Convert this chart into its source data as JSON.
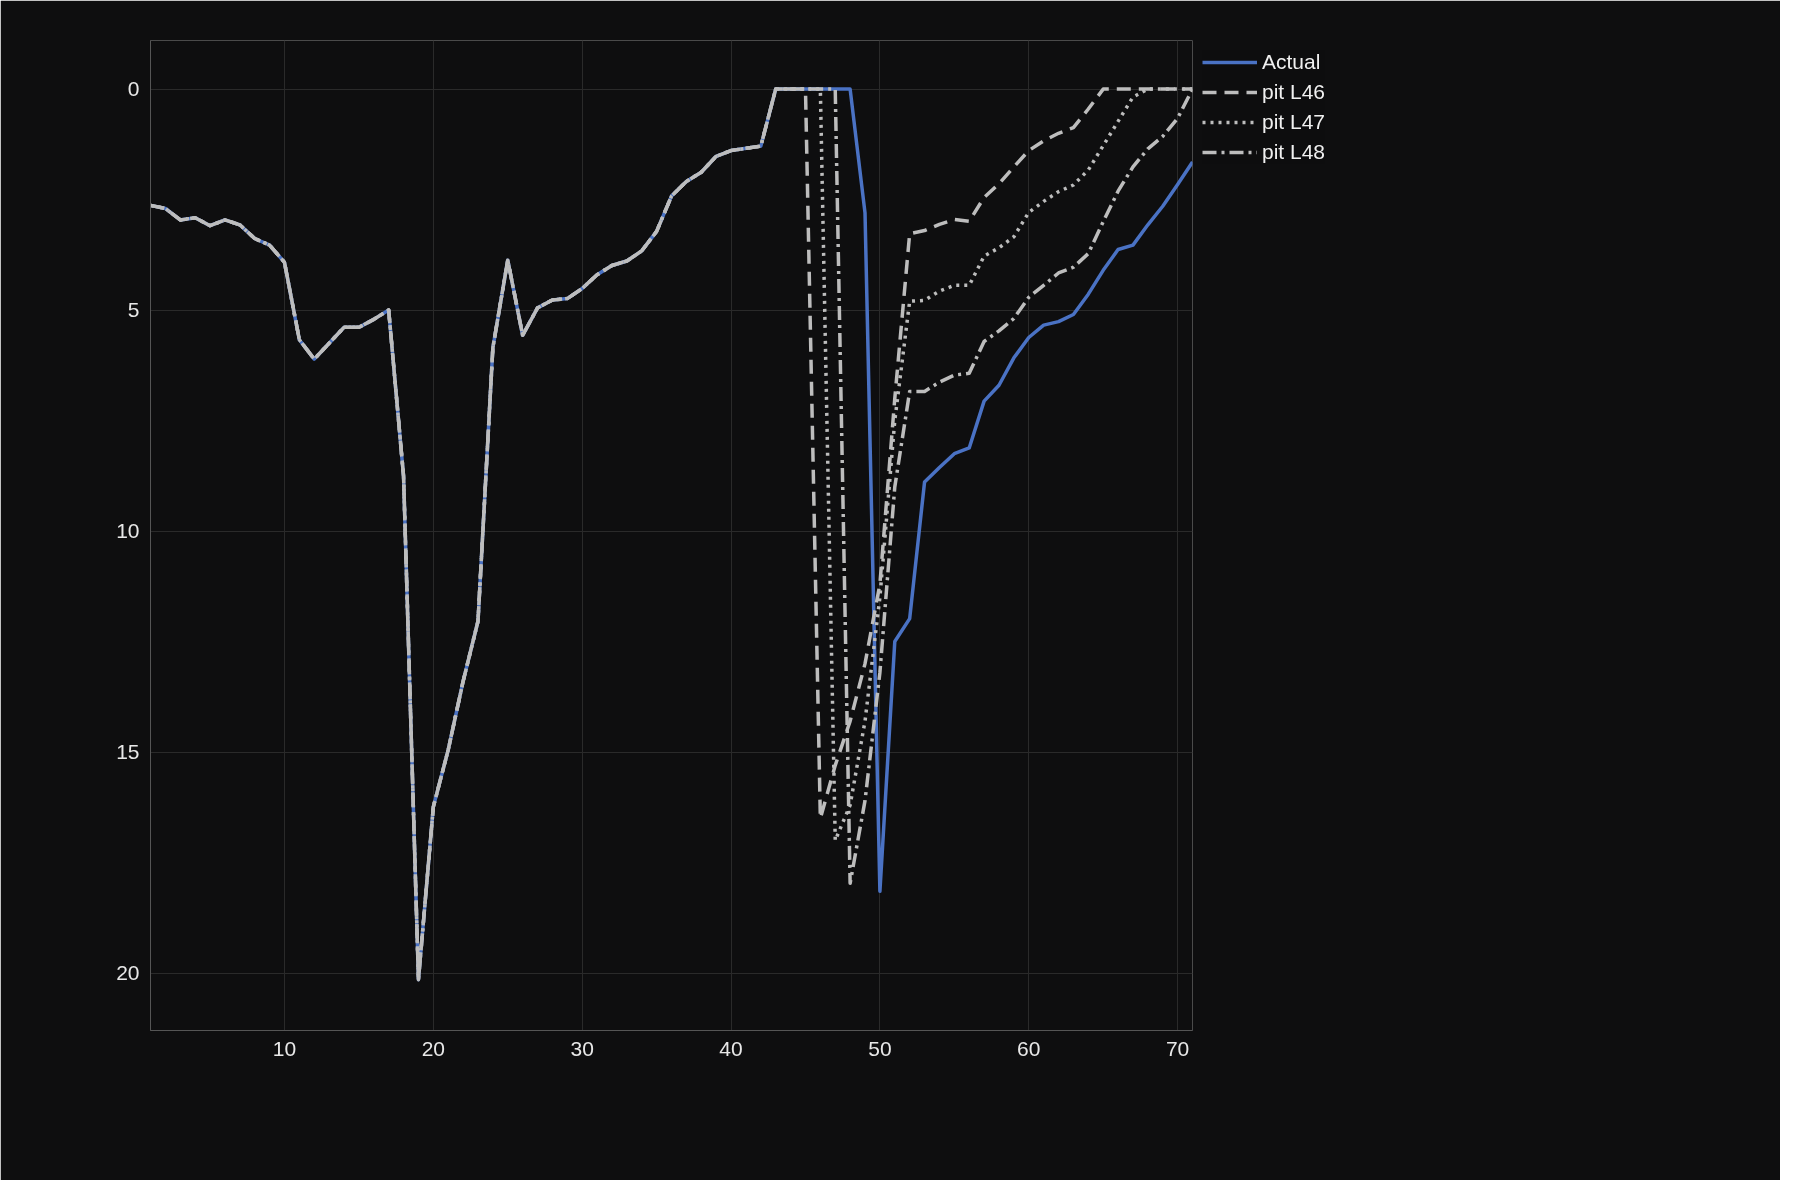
{
  "chart_data": {
    "type": "line",
    "x": [
      1,
      2,
      3,
      4,
      5,
      6,
      7,
      8,
      9,
      10,
      11,
      12,
      13,
      14,
      15,
      16,
      17,
      18,
      19,
      20,
      21,
      22,
      23,
      24,
      25,
      26,
      27,
      28,
      29,
      30,
      31,
      32,
      33,
      34,
      35,
      36,
      37,
      38,
      39,
      40,
      41,
      42,
      43,
      44,
      45,
      46,
      47,
      48,
      49,
      50,
      51,
      52,
      53,
      54,
      55,
      56,
      57,
      58,
      59,
      60,
      61,
      62,
      63,
      64,
      65,
      66,
      67,
      68,
      69,
      70,
      71
    ],
    "xlim": [
      1,
      71
    ],
    "xticks": [
      10,
      20,
      30,
      40,
      50,
      60,
      70
    ],
    "ylim": [
      21.3,
      -1.1
    ],
    "yticks": [
      0,
      5,
      10,
      15,
      20
    ],
    "grid": true,
    "legend": "top right",
    "marker": "none",
    "series": [
      {
        "name": "Actual",
        "color": "#4a72c4",
        "line_style": "solid",
        "values": [
          2.63,
          2.7,
          2.96,
          2.91,
          3.09,
          2.96,
          3.07,
          3.38,
          3.53,
          3.92,
          5.67,
          6.11,
          5.75,
          5.39,
          5.39,
          5.21,
          5.0,
          8.76,
          20.15,
          16.24,
          14.95,
          13.4,
          12.04,
          5.85,
          3.87,
          5.57,
          4.95,
          4.77,
          4.74,
          4.51,
          4.2,
          3.99,
          3.89,
          3.66,
          3.22,
          2.42,
          2.09,
          1.88,
          1.52,
          1.39,
          1.34,
          1.29,
          0,
          0,
          0,
          0,
          0,
          0,
          2.8,
          18.15,
          12.5,
          11.98,
          8.89,
          8.56,
          8.25,
          8.12,
          7.06,
          6.7,
          6.08,
          5.62,
          5.34,
          5.26,
          5.1,
          4.64,
          4.1,
          3.63,
          3.53,
          3.07,
          2.65,
          2.16,
          1.65
        ]
      },
      {
        "name": "pit L46",
        "color": "#bdbdbd",
        "line_style": "dashed",
        "values": [
          2.63,
          2.7,
          2.96,
          2.91,
          3.09,
          2.96,
          3.07,
          3.38,
          3.53,
          3.92,
          5.67,
          6.11,
          5.75,
          5.39,
          5.39,
          5.21,
          5.0,
          8.76,
          20.15,
          16.24,
          14.95,
          13.4,
          12.04,
          5.85,
          3.87,
          5.57,
          4.95,
          4.77,
          4.74,
          4.51,
          4.2,
          3.99,
          3.89,
          3.66,
          3.22,
          2.42,
          2.09,
          1.88,
          1.52,
          1.39,
          1.34,
          1.29,
          0,
          0,
          0,
          16.5,
          15.3,
          14.3,
          13.0,
          11.2,
          7.0,
          3.27,
          3.2,
          3.06,
          2.95,
          2.99,
          2.45,
          2.14,
          1.76,
          1.39,
          1.17,
          1.0,
          0.87,
          0.45,
          0,
          0,
          0,
          0,
          0,
          0,
          0
        ]
      },
      {
        "name": "pit L47",
        "color": "#bdbdbd",
        "line_style": "dotted",
        "values": [
          2.63,
          2.7,
          2.96,
          2.91,
          3.09,
          2.96,
          3.07,
          3.38,
          3.53,
          3.92,
          5.67,
          6.11,
          5.75,
          5.39,
          5.39,
          5.21,
          5.0,
          8.76,
          20.15,
          16.24,
          14.95,
          13.4,
          12.04,
          5.85,
          3.87,
          5.57,
          4.95,
          4.77,
          4.74,
          4.51,
          4.2,
          3.99,
          3.89,
          3.66,
          3.22,
          2.42,
          2.09,
          1.88,
          1.52,
          1.39,
          1.34,
          1.29,
          0,
          0,
          0,
          0,
          17.0,
          16.2,
          14.3,
          11.5,
          7.5,
          4.8,
          4.78,
          4.57,
          4.44,
          4.44,
          3.78,
          3.59,
          3.34,
          2.79,
          2.54,
          2.32,
          2.17,
          1.83,
          1.28,
          0.73,
          0.18,
          0,
          0,
          0,
          0
        ]
      },
      {
        "name": "pit L48",
        "color": "#bdbdbd",
        "line_style": "dashdot",
        "values": [
          2.63,
          2.7,
          2.96,
          2.91,
          3.09,
          2.96,
          3.07,
          3.38,
          3.53,
          3.92,
          5.67,
          6.11,
          5.75,
          5.39,
          5.39,
          5.21,
          5.0,
          8.76,
          20.15,
          16.24,
          14.95,
          13.4,
          12.04,
          5.85,
          3.87,
          5.57,
          4.95,
          4.77,
          4.74,
          4.51,
          4.2,
          3.99,
          3.89,
          3.66,
          3.22,
          2.42,
          2.09,
          1.88,
          1.52,
          1.39,
          1.34,
          1.29,
          0,
          0,
          0,
          0,
          0,
          17.97,
          16.1,
          13.2,
          9.0,
          6.84,
          6.84,
          6.63,
          6.47,
          6.43,
          5.71,
          5.47,
          5.19,
          4.71,
          4.44,
          4.16,
          4.03,
          3.72,
          3.0,
          2.31,
          1.76,
          1.35,
          1.07,
          0.66,
          0
        ]
      }
    ]
  }
}
